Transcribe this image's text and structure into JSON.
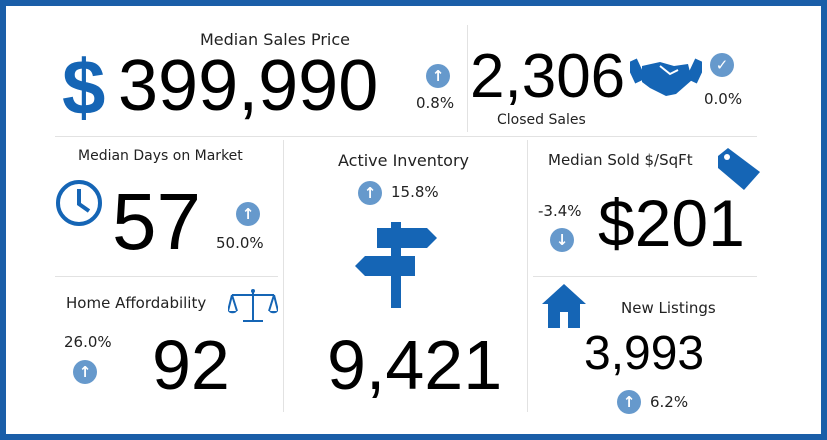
{
  "colors": {
    "frame": "#1a5ea8",
    "icon": "#1565b5",
    "badge": "#6699cc"
  },
  "median_sales_price": {
    "label": "Median Sales Price",
    "currency_symbol": "$",
    "value": "399,990",
    "change": "0.8%",
    "direction": "up"
  },
  "closed_sales": {
    "label": "Closed Sales",
    "value": "2,306",
    "change": "0.0%",
    "direction": "check",
    "icon": "handshake-icon"
  },
  "median_days": {
    "label": "Median Days on Market",
    "value": "57",
    "change": "50.0%",
    "direction": "up",
    "icon": "clock-icon"
  },
  "active_inventory": {
    "label": "Active Inventory",
    "value": "9,421",
    "change": "15.8%",
    "direction": "up",
    "icon": "signpost-icon"
  },
  "median_sold_sqft": {
    "label": "Median Sold $/SqFt",
    "value": "$201",
    "change": "-3.4%",
    "direction": "down",
    "icon": "price-tag-icon"
  },
  "home_affordability": {
    "label": "Home Affordability",
    "value": "92",
    "change": "26.0%",
    "direction": "up",
    "icon": "scales-icon"
  },
  "new_listings": {
    "label": "New Listings",
    "value": "3,993",
    "change": "6.2%",
    "direction": "up",
    "icon": "house-icon"
  }
}
